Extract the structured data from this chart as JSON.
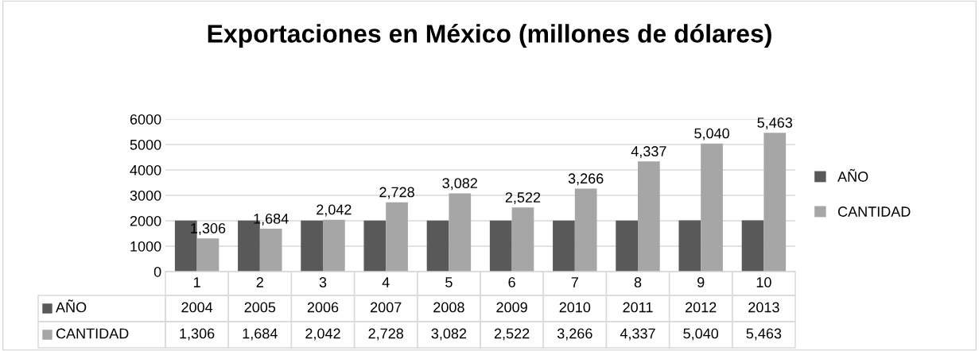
{
  "chart_data": {
    "type": "bar",
    "title": "Exportaciones en México (millones de dólares)",
    "categories": [
      "1",
      "2",
      "3",
      "4",
      "5",
      "6",
      "7",
      "8",
      "9",
      "10"
    ],
    "series": [
      {
        "name": "AÑO",
        "color": "#595959",
        "values": [
          2004,
          2005,
          2006,
          2007,
          2008,
          2009,
          2010,
          2011,
          2012,
          2013
        ],
        "value_labels": [
          "2004",
          "2005",
          "2006",
          "2007",
          "2008",
          "2009",
          "2010",
          "2011",
          "2012",
          "2013"
        ]
      },
      {
        "name": "CANTIDAD",
        "color": "#a6a6a6",
        "values": [
          1306,
          1684,
          2042,
          2728,
          3082,
          2522,
          3266,
          4337,
          5040,
          5463
        ],
        "value_labels": [
          "1,306",
          "1,684",
          "2,042",
          "2,728",
          "3,082",
          "2,522",
          "3,266",
          "4,337",
          "5,040",
          "5,463"
        ],
        "data_labels": true
      }
    ],
    "ylim": [
      0,
      6000
    ],
    "yticks": [
      0,
      1000,
      2000,
      3000,
      4000,
      5000,
      6000
    ],
    "grid": "y",
    "legend": "right"
  }
}
